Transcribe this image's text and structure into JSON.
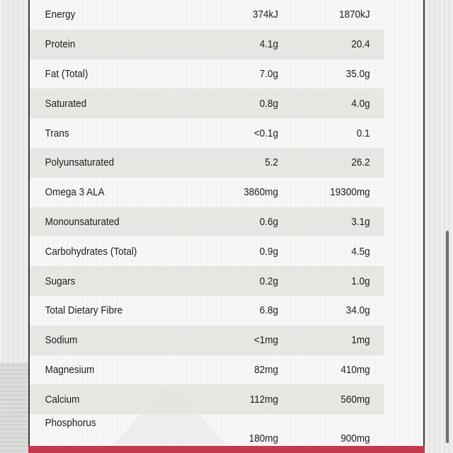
{
  "nutrition_table": {
    "rows": [
      {
        "name": "Energy",
        "per_serve": "374kJ",
        "per_100": "1870kJ"
      },
      {
        "name": "Protein",
        "per_serve": "4.1g",
        "per_100": "20.4"
      },
      {
        "name": "Fat (Total)",
        "per_serve": "7.0g",
        "per_100": "35.0g"
      },
      {
        "name": "Saturated",
        "per_serve": "0.8g",
        "per_100": "4.0g"
      },
      {
        "name": "Trans",
        "per_serve": "<0.1g",
        "per_100": "0.1"
      },
      {
        "name": "Polyunsaturated",
        "per_serve": "5.2",
        "per_100": "26.2"
      },
      {
        "name": "Omega 3 ALA",
        "per_serve": "3860mg",
        "per_100": "19300mg"
      },
      {
        "name": "Monounsaturated",
        "per_serve": "0.6g",
        "per_100": "3.1g"
      },
      {
        "name": "Carbohydrates (Total)",
        "per_serve": "0.9g",
        "per_100": "4.5g"
      },
      {
        "name": "Sugars",
        "per_serve": "0.2g",
        "per_100": "1.0g"
      },
      {
        "name": "Total Dietary Fibre",
        "per_serve": "6.8g",
        "per_100": "34.0g"
      },
      {
        "name": "Sodium",
        "per_serve": "<1mg",
        "per_100": "1mg"
      },
      {
        "name": "Magnesium",
        "per_serve": "82mg",
        "per_100": "410mg"
      },
      {
        "name": "Calcium",
        "per_serve": "112mg",
        "per_100": "560mg"
      },
      {
        "name": "Phosphorus",
        "per_serve": "180mg",
        "per_100": "900mg"
      }
    ]
  },
  "colors": {
    "accent_bar": "#c23b4d",
    "text": "#1d1d1d",
    "border": "#3a3a3a"
  }
}
